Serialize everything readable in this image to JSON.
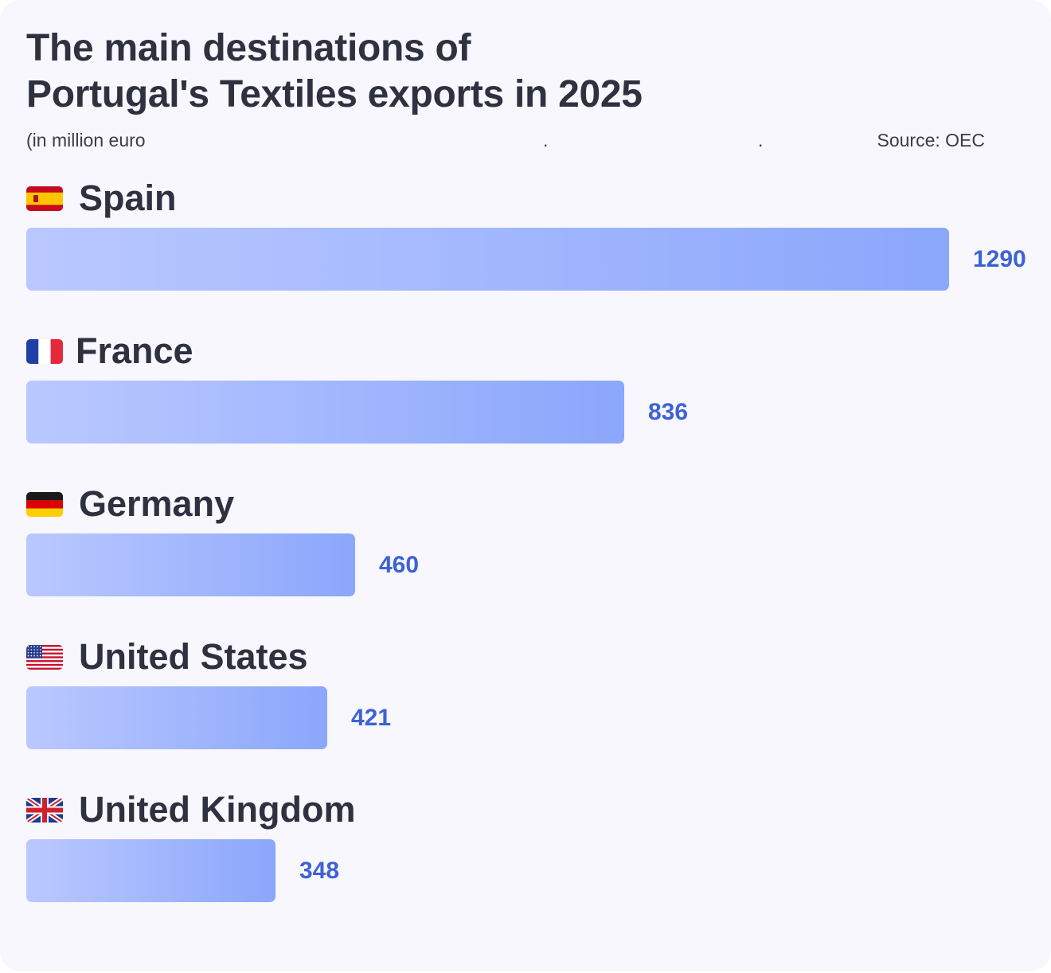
{
  "title": {
    "line1": "The main destinations of",
    "line2": "Portugal's Textiles exports in 2025"
  },
  "subtitle": {
    "unit": "(in million euro",
    "dot1": ".",
    "dot2": ".",
    "source": "Source: OEC"
  },
  "colors": {
    "bar_start": "#bac8ff",
    "bar_end": "#8ba7fb",
    "value_text": "#3d62d4",
    "title_text": "#2f3140",
    "background": "#f7f7fd"
  },
  "chart_data": {
    "type": "bar",
    "orientation": "horizontal",
    "title": "The main destinations of Portugal's Textiles exports in 2025",
    "unit": "(in million euro",
    "source": "Source: OEC",
    "categories": [
      "Spain",
      "France",
      "Germany",
      "United States",
      "United Kingdom"
    ],
    "flags": [
      "spain-flag-icon",
      "france-flag-icon",
      "germany-flag-icon",
      "united-states-flag-icon",
      "united-kingdom-flag-icon"
    ],
    "values": [
      1290,
      836,
      460,
      421,
      348
    ],
    "value_labels": [
      "1290",
      "836",
      "460",
      "421",
      "348"
    ],
    "xlim": [
      0,
      1290
    ],
    "grid": false,
    "legend": "none"
  }
}
